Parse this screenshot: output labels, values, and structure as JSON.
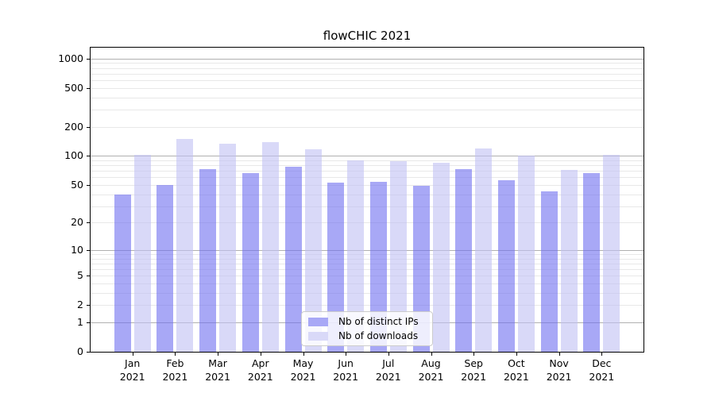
{
  "title": "flowCHIC 2021",
  "legend": {
    "items": [
      {
        "label": "Nb of distinct IPs"
      },
      {
        "label": "Nb of downloads"
      }
    ]
  },
  "colors": {
    "distinct_ips": "#a8a8f6",
    "downloads": "#d9d9f8",
    "distinct_ips_fill": "rgba(110,110,240,0.6)",
    "downloads_fill": "rgba(192,192,243,0.6)",
    "grid_major": "#b0b0b0",
    "grid_minor": "#e8e8e8",
    "axis": "#000000"
  },
  "x_axis": {
    "months": [
      "Jan",
      "Feb",
      "Mar",
      "Apr",
      "May",
      "Jun",
      "Jul",
      "Aug",
      "Sep",
      "Oct",
      "Nov",
      "Dec"
    ],
    "year": "2021"
  },
  "y_axis": {
    "ticks": [
      0,
      1,
      2,
      5,
      10,
      20,
      50,
      100,
      200,
      500,
      1000
    ]
  },
  "chart_data": {
    "type": "bar",
    "title": "flowCHIC 2021",
    "categories": [
      "Jan 2021",
      "Feb 2021",
      "Mar 2021",
      "Apr 2021",
      "May 2021",
      "Jun 2021",
      "Jul 2021",
      "Aug 2021",
      "Sep 2021",
      "Oct 2021",
      "Nov 2021",
      "Dec 2021"
    ],
    "series": [
      {
        "name": "Nb of distinct IPs",
        "values": [
          40,
          50,
          73,
          67,
          78,
          53,
          54,
          49,
          73,
          56,
          43,
          67
        ]
      },
      {
        "name": "Nb of downloads",
        "values": [
          103,
          150,
          134,
          140,
          118,
          90,
          89,
          85,
          119,
          100,
          72,
          102
        ]
      }
    ],
    "xlabel": "",
    "ylabel": "",
    "y_scale": "log10(value+1)",
    "y_ticks": [
      0,
      1,
      2,
      5,
      10,
      20,
      50,
      100,
      200,
      500,
      1000
    ],
    "ylim": [
      0,
      1320
    ],
    "grid": "horizontal; dark gridlines at 1,10,100,1000; light minor gridlines at 2-9 mantissas",
    "legend_position": "lower center"
  }
}
